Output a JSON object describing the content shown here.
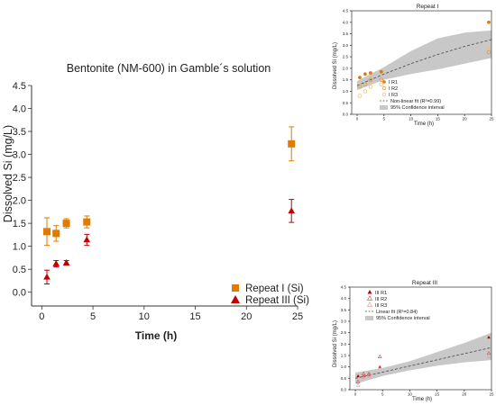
{
  "colors": {
    "repeat_I": "#e07b00",
    "repeat_III": "#c00000",
    "repeat_I_light": "#f0c080",
    "repeat_III_light": "#e8a0a0",
    "band": "#c8c8c8",
    "fit_line": "#555555"
  },
  "chart_data": [
    {
      "id": "main",
      "type": "scatter",
      "title": "Bentonite (NM-600) in Gamble´s solution",
      "xlabel": "Time (h)",
      "ylabel": "Dissolved Si (mg/L)",
      "xlim": [
        -1,
        25
      ],
      "ylim": [
        -0.3,
        4.5
      ],
      "xticks": [
        0,
        5,
        10,
        15,
        20,
        25
      ],
      "yticks": [
        0.0,
        0.5,
        1.0,
        1.5,
        2.0,
        2.5,
        3.0,
        3.5,
        4.0,
        4.5
      ],
      "ytick_labels": [
        "0.0",
        "0.5",
        "1.0",
        "1.5",
        "2.0",
        "2.5",
        "3.0",
        "3.5",
        "4.0",
        "4.5"
      ],
      "legend_position": "bottom-right",
      "series": [
        {
          "name": "Repeat I (Si)",
          "marker": "square",
          "color": "#e07b00",
          "points": [
            {
              "x": 0.5,
              "y": 1.32,
              "err": 0.3
            },
            {
              "x": 1.4,
              "y": 1.28,
              "err": 0.17
            },
            {
              "x": 2.4,
              "y": 1.5,
              "err": 0.1
            },
            {
              "x": 4.4,
              "y": 1.53,
              "err": 0.13
            },
            {
              "x": 24.4,
              "y": 3.23,
              "err": 0.37
            }
          ]
        },
        {
          "name": "Repeat III (Si)",
          "marker": "triangle",
          "color": "#c00000",
          "points": [
            {
              "x": 0.5,
              "y": 0.33,
              "err": 0.15
            },
            {
              "x": 1.4,
              "y": 0.62,
              "err": 0.07
            },
            {
              "x": 2.4,
              "y": 0.64,
              "err": 0.05
            },
            {
              "x": 4.4,
              "y": 1.14,
              "err": 0.12
            },
            {
              "x": 24.4,
              "y": 1.77,
              "err": 0.25
            }
          ]
        }
      ]
    },
    {
      "id": "inset_I",
      "type": "scatter",
      "title": "Repeat I",
      "xlabel": "Time (h)",
      "ylabel": "Dissolved Si (mg/L)",
      "xlim": [
        -1,
        25
      ],
      "ylim": [
        0,
        4.5
      ],
      "xticks": [
        0,
        5,
        10,
        15,
        20,
        25
      ],
      "yticks": [
        0.0,
        0.5,
        1.0,
        1.5,
        2.0,
        2.5,
        3.0,
        3.5,
        4.0,
        4.5
      ],
      "ytick_labels": [
        "0.0",
        "0.5",
        "1.0",
        "1.5",
        "2.0",
        "2.5",
        "3.0",
        "3.5",
        "4.0",
        "4.5"
      ],
      "series": [
        {
          "name": "I R1",
          "marker": "circle-filled",
          "color": "#e07b00",
          "x": [
            0.5,
            1.5,
            2.5,
            4.5,
            24.5
          ],
          "y": [
            1.6,
            1.75,
            1.8,
            1.85,
            4.0
          ]
        },
        {
          "name": "I R2",
          "marker": "circle-open",
          "color": "#e09b40",
          "x": [
            0.5,
            1.5,
            2.5,
            4.5,
            24.5
          ],
          "y": [
            1.2,
            1.3,
            1.5,
            1.5,
            2.7
          ]
        },
        {
          "name": "I R3",
          "marker": "circle-open",
          "color": "#f0c080",
          "x": [
            0.5,
            1.5,
            2.5,
            4.5,
            24.5
          ],
          "y": [
            0.8,
            1.0,
            1.2,
            1.3,
            2.9
          ]
        }
      ],
      "fit": {
        "name": "Non-linear fit (R²=0.99)",
        "x": [
          0,
          5,
          10,
          15,
          20,
          25
        ],
        "y": [
          1.25,
          1.75,
          2.2,
          2.6,
          2.95,
          3.25
        ]
      },
      "band": {
        "name": "95% Confidence interval",
        "x": [
          0,
          5,
          10,
          15,
          20,
          25
        ],
        "lower": [
          1.05,
          1.5,
          1.75,
          1.95,
          2.2,
          2.45
        ],
        "upper": [
          1.45,
          2.05,
          2.75,
          3.3,
          3.55,
          3.65
        ]
      }
    },
    {
      "id": "inset_III",
      "type": "scatter",
      "title": "Repeat III",
      "xlabel": "Time (h)",
      "ylabel": "Dissolved Si (mg/L)",
      "xlim": [
        -1,
        25
      ],
      "ylim": [
        0,
        4.5
      ],
      "xticks": [
        0,
        5,
        10,
        15,
        20,
        25
      ],
      "yticks": [
        0.0,
        0.5,
        1.0,
        1.5,
        2.0,
        2.5,
        3.0,
        3.5,
        4.0,
        4.5
      ],
      "ytick_labels": [
        "0.0",
        "0.5",
        "1.0",
        "1.5",
        "2.0",
        "2.5",
        "3.0",
        "3.5",
        "4.0",
        "4.5"
      ],
      "series": [
        {
          "name": "III R1",
          "marker": "triangle-filled",
          "color": "#c00000",
          "x": [
            0.5,
            1.5,
            2.5,
            4.5,
            24.5
          ],
          "y": [
            0.6,
            0.6,
            0.65,
            1.0,
            2.3
          ]
        },
        {
          "name": "III R2",
          "marker": "triangle-open",
          "color": "#d06060",
          "x": [
            0.5,
            1.5,
            2.5,
            4.5,
            24.5
          ],
          "y": [
            0.35,
            0.7,
            0.7,
            1.45,
            1.6
          ]
        },
        {
          "name": "III R3",
          "marker": "triangle-open",
          "color": "#e8a0a0",
          "x": [
            0.5,
            1.5,
            2.5,
            4.5,
            24.5
          ],
          "y": [
            0.2,
            0.55,
            0.6,
            1.0,
            1.45
          ]
        }
      ],
      "fit": {
        "name": "Linear fit (R²=0.84)",
        "x": [
          0,
          25
        ],
        "y": [
          0.5,
          1.85
        ]
      },
      "band": {
        "name": "95% Confidence interval",
        "x": [
          0,
          5,
          10,
          15,
          20,
          25
        ],
        "lower": [
          0.25,
          0.6,
          0.85,
          1.05,
          1.2,
          1.3
        ],
        "upper": [
          0.75,
          0.95,
          1.25,
          1.65,
          2.05,
          2.5
        ]
      }
    }
  ]
}
